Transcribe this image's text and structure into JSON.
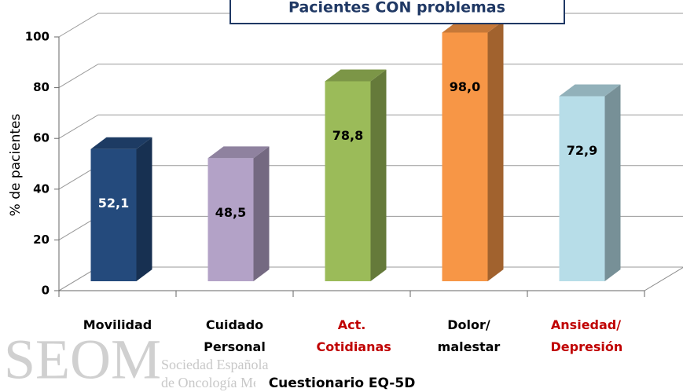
{
  "chart_data": {
    "type": "bar3d",
    "title": "Pacientes CON problemas",
    "ylabel": "% de pacientes",
    "xlabel": "Cuestionario EQ-5D",
    "watermark": {
      "logo": "SEOM",
      "lines": [
        "Sociedad Española",
        "de Oncología Médica"
      ]
    },
    "categories": [
      "Movilidad",
      "Cuidado Personal",
      "Act. Cotidianas",
      "Dolor/ malestar",
      "Ansiedad/ Depresión"
    ],
    "category_colors": [
      "#000000",
      "#000000",
      "#c00000",
      "#000000",
      "#c00000"
    ],
    "values": [
      52.1,
      48.5,
      78.8,
      98.0,
      72.9
    ],
    "value_labels": [
      "52,1",
      "48,5",
      "78,8",
      "98,0",
      "72,9"
    ],
    "colors": [
      "#244a7c",
      "#b3a2c7",
      "#9bbb59",
      "#f79646",
      "#b7dde8"
    ],
    "ylim": [
      0,
      100
    ],
    "yticks": [
      0,
      20,
      40,
      60,
      80,
      100
    ],
    "grid": true
  }
}
